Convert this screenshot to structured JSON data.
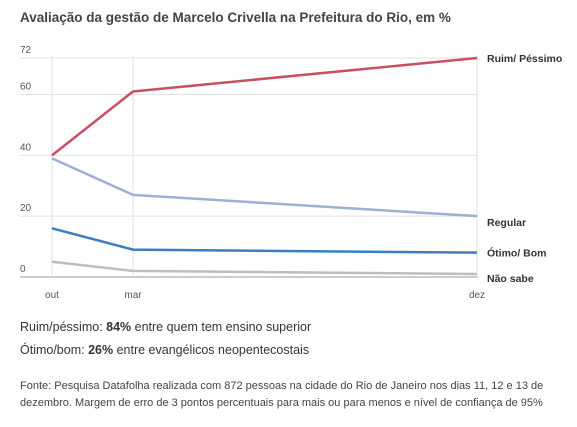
{
  "chart_data": {
    "type": "line",
    "title": "Avaliação da gestão de Marcelo Crivella na Prefeitura do Rio, em %",
    "x": [
      "out",
      "mar",
      "dez"
    ],
    "ylim": [
      0,
      72
    ],
    "yticks": [
      "72",
      "60",
      "40",
      "20",
      "0"
    ],
    "grid": true,
    "series": [
      {
        "name": "Ruim/ Péssimo",
        "color": "#c94f63",
        "values": [
          40,
          61,
          72
        ]
      },
      {
        "name": "Regular",
        "color": "#9cb1d3",
        "values": [
          39,
          27,
          20
        ]
      },
      {
        "name": "Ótimo/ Bom",
        "color": "#3a7fbf",
        "values": [
          16,
          9,
          8
        ]
      },
      {
        "name": "Não sabe",
        "color": "#bdbdbd",
        "values": [
          5,
          2,
          1
        ]
      }
    ]
  },
  "notes": [
    {
      "prefix": "Ruim/péssimo: ",
      "value": "84%",
      "suffix": " entre quem tem ensino superior"
    },
    {
      "prefix": "Ótimo/bom: ",
      "value": "26%",
      "suffix": " entre evangélicos neopentecostais"
    }
  ],
  "source": "Fonte: Pesquisa Datafolha realizada com 872 pessoas na cidade do Rio de Janeiro nos dias 11, 12 e 13 de dezembro. Margem de erro de 3 pontos percentuais para mais ou para menos e nível de confiança de 95%"
}
